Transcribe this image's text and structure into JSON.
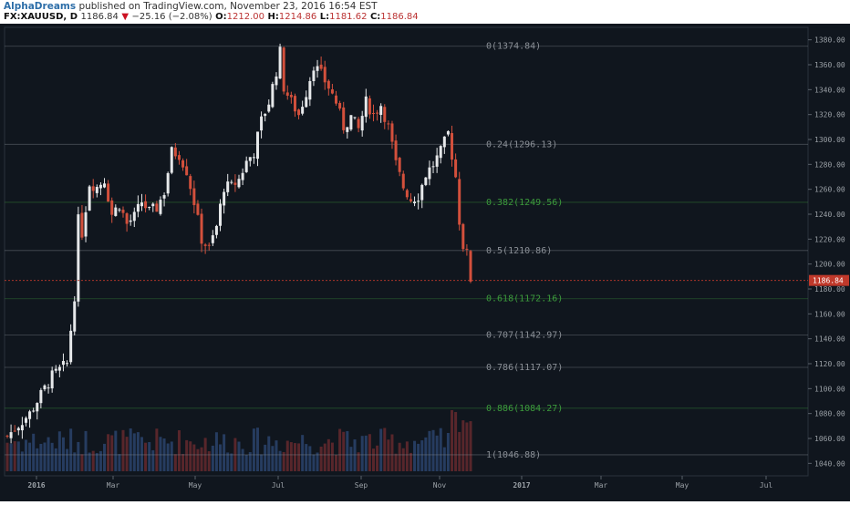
{
  "header": {
    "author": "AlphaDreams",
    "published": "published on TradingView.com, November 23, 2016 16:54 EST",
    "symbol": "FX:XAUUSD, D",
    "last": "1186.84",
    "change": "−25.16 (−2.08%)",
    "open_label": "O:",
    "open": "1212.00",
    "high_label": "H:",
    "high": "1214.86",
    "low_label": "L:",
    "low": "1181.62",
    "close_label": "C:",
    "close": "1186.84"
  },
  "colors": {
    "background": "#10161e",
    "up_candle": "#e6e8ea",
    "down_candle": "#d3503c",
    "fib_gray": "#8a8f96",
    "fib_green": "#3c9a3c",
    "price_tag": "#c0392b"
  },
  "chart_data": {
    "type": "candlestick",
    "y_axis": {
      "range": [
        1030,
        1390
      ],
      "ticks": [
        "1040.00",
        "1060.00",
        "1080.00",
        "1100.00",
        "1120.00",
        "1140.00",
        "1160.00",
        "1180.00",
        "1200.00",
        "1220.00",
        "1240.00",
        "1260.00",
        "1280.00",
        "1300.00",
        "1320.00",
        "1340.00",
        "1360.00",
        "1380.00"
      ]
    },
    "x_axis": {
      "labels": [
        "2016",
        "Mar",
        "May",
        "Jul",
        "Sep",
        "Nov",
        "2017",
        "Mar",
        "May",
        "Jul"
      ]
    },
    "last_price_label": "1186.84",
    "last_price": 1186.84,
    "fib_levels": [
      {
        "label": "0(1374.84)",
        "value": 1374.84,
        "color": "gray"
      },
      {
        "label": "0.24(1296.13)",
        "value": 1296.13,
        "color": "gray"
      },
      {
        "label": "0.382(1249.56)",
        "value": 1249.56,
        "color": "green"
      },
      {
        "label": "0.5(1210.86)",
        "value": 1210.86,
        "color": "gray"
      },
      {
        "label": "0.618(1172.16)",
        "value": 1172.16,
        "color": "green"
      },
      {
        "label": "0.707(1142.97)",
        "value": 1142.97,
        "color": "gray"
      },
      {
        "label": "0.786(1117.07)",
        "value": 1117.07,
        "color": "gray"
      },
      {
        "label": "0.886(1084.27)",
        "value": 1084.27,
        "color": "green"
      },
      {
        "label": "1(1046.88)",
        "value": 1046.88,
        "color": "gray"
      }
    ],
    "price_path": [
      [
        0,
        1062
      ],
      [
        6,
        1080
      ],
      [
        12,
        1110
      ],
      [
        16,
        1120
      ],
      [
        18,
        1175
      ],
      [
        19,
        1235
      ],
      [
        20,
        1225
      ],
      [
        22,
        1265
      ],
      [
        24,
        1262
      ],
      [
        26,
        1268
      ],
      [
        28,
        1240
      ],
      [
        30,
        1248
      ],
      [
        32,
        1232
      ],
      [
        34,
        1238
      ],
      [
        36,
        1250
      ],
      [
        38,
        1242
      ],
      [
        40,
        1245
      ],
      [
        42,
        1258
      ],
      [
        44,
        1290
      ],
      [
        46,
        1288
      ],
      [
        48,
        1275
      ],
      [
        50,
        1250
      ],
      [
        52,
        1220
      ],
      [
        54,
        1212
      ],
      [
        56,
        1230
      ],
      [
        58,
        1262
      ],
      [
        60,
        1262
      ],
      [
        62,
        1268
      ],
      [
        64,
        1282
      ],
      [
        66,
        1290
      ],
      [
        68,
        1315
      ],
      [
        70,
        1330
      ],
      [
        72,
        1355
      ],
      [
        73,
        1370
      ],
      [
        74,
        1342
      ],
      [
        76,
        1330
      ],
      [
        78,
        1320
      ],
      [
        80,
        1338
      ],
      [
        82,
        1360
      ],
      [
        84,
        1352
      ],
      [
        86,
        1342
      ],
      [
        88,
        1330
      ],
      [
        90,
        1310
      ],
      [
        92,
        1318
      ],
      [
        94,
        1308
      ],
      [
        96,
        1330
      ],
      [
        98,
        1320
      ],
      [
        100,
        1328
      ],
      [
        102,
        1310
      ],
      [
        104,
        1280
      ],
      [
        106,
        1262
      ],
      [
        108,
        1252
      ],
      [
        110,
        1255
      ],
      [
        112,
        1272
      ],
      [
        114,
        1280
      ],
      [
        116,
        1290
      ],
      [
        118,
        1305
      ],
      [
        120,
        1270
      ],
      [
        121,
        1235
      ],
      [
        122,
        1215
      ],
      [
        123,
        1208
      ],
      [
        124,
        1188
      ]
    ]
  }
}
